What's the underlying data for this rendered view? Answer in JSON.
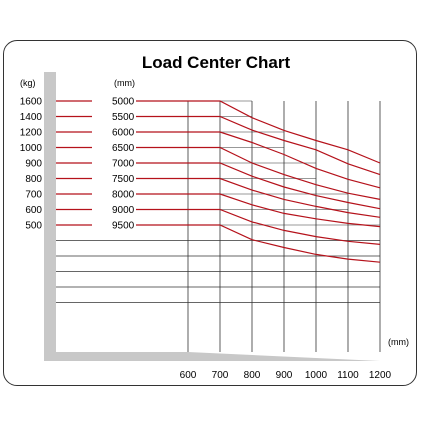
{
  "chart_data": {
    "type": "line",
    "title": "Load Center Chart",
    "y_unit": "(kg)",
    "height_unit": "(mm)",
    "x_unit": "(mm)",
    "x": [
      600,
      700,
      800,
      900,
      1000,
      1100,
      1200
    ],
    "capacities": [
      1600,
      1400,
      1200,
      1000,
      900,
      800,
      700,
      600,
      500
    ],
    "series": [
      {
        "name": "5000",
        "values": [
          1600,
          1600,
          1385,
          1220,
          1090,
          985,
          900
        ]
      },
      {
        "name": "5500",
        "values": [
          1400,
          1400,
          1225,
          1090,
          985,
          895,
          825
        ]
      },
      {
        "name": "6000",
        "values": [
          1200,
          1200,
          1065,
          955,
          865,
          795,
          740
        ]
      },
      {
        "name": "6500",
        "values": [
          1000,
          1000,
          900,
          825,
          760,
          705,
          665
        ]
      },
      {
        "name": "7000",
        "values": [
          900,
          900,
          815,
          745,
          690,
          645,
          605
        ]
      },
      {
        "name": "7500",
        "values": [
          800,
          800,
          725,
          665,
          620,
          580,
          550
        ]
      },
      {
        "name": "8000",
        "values": [
          700,
          700,
          630,
          575,
          540,
          510,
          490
        ]
      },
      {
        "name": "9000",
        "values": [
          600,
          600,
          520,
          465,
          425,
          395,
          375
        ]
      },
      {
        "name": "9500",
        "values": [
          500,
          500,
          405,
          355,
          310,
          280,
          260
        ]
      }
    ],
    "colors": {
      "curve": "#b5121b",
      "grid": "#333333",
      "frame": "#c8c8c8"
    }
  }
}
